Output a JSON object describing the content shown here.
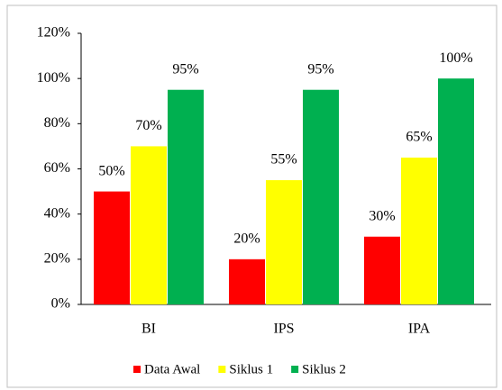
{
  "chart_data": {
    "type": "bar",
    "categories": [
      "BI",
      "IPS",
      "IPA"
    ],
    "series": [
      {
        "name": "Data Awal",
        "color": "#ff0000",
        "values": [
          50,
          20,
          30
        ],
        "value_labels": [
          "50%",
          "20%",
          "30%"
        ]
      },
      {
        "name": "Siklus 1",
        "color": "#ffff00",
        "values": [
          70,
          55,
          65
        ],
        "value_labels": [
          "70%",
          "55%",
          "65%"
        ]
      },
      {
        "name": "Siklus 2",
        "color": "#00b050",
        "values": [
          95,
          95,
          100
        ],
        "value_labels": [
          "95%",
          "95%",
          "100%"
        ]
      }
    ],
    "ylim": [
      0,
      120
    ],
    "yticks": [
      {
        "value": 0,
        "label": "0%"
      },
      {
        "value": 20,
        "label": "20%"
      },
      {
        "value": 40,
        "label": "40%"
      },
      {
        "value": 60,
        "label": "60%"
      },
      {
        "value": 80,
        "label": "80%"
      },
      {
        "value": 100,
        "label": "100%"
      },
      {
        "value": 120,
        "label": "120%"
      }
    ],
    "grid": false,
    "legend": "bottom"
  }
}
